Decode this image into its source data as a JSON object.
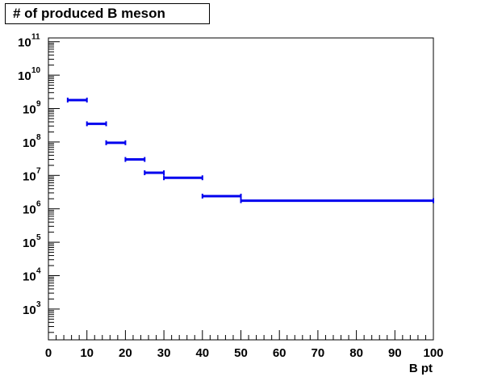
{
  "chart_data": {
    "type": "histogram",
    "title": "# of produced B meson",
    "xlabel": "B pt",
    "ylabel": "",
    "xlim": [
      0,
      100
    ],
    "ylim": [
      120,
      130000000000
    ],
    "y_scale": "log",
    "grid": false,
    "x_major_ticks": [
      0,
      10,
      20,
      30,
      40,
      50,
      60,
      70,
      80,
      90,
      100
    ],
    "x_tick_labels": [
      "0",
      "10",
      "20",
      "30",
      "40",
      "50",
      "60",
      "70",
      "80",
      "90",
      "100"
    ],
    "y_major_ticks": [
      1000,
      10000,
      100000,
      1000000,
      10000000,
      100000000,
      1000000000,
      10000000000,
      100000000000
    ],
    "y_tick_labels": [
      {
        "base": "10",
        "exp": "3"
      },
      {
        "base": "10",
        "exp": "4"
      },
      {
        "base": "10",
        "exp": "5"
      },
      {
        "base": "10",
        "exp": "6"
      },
      {
        "base": "10",
        "exp": "7"
      },
      {
        "base": "10",
        "exp": "8"
      },
      {
        "base": "10",
        "exp": "9"
      },
      {
        "base": "10",
        "exp": "10"
      },
      {
        "base": "10",
        "exp": "11"
      }
    ],
    "series": [
      {
        "color": "#0000ee",
        "bins": [
          {
            "x_low": 5,
            "x_high": 10,
            "value": 1800000000
          },
          {
            "x_low": 10,
            "x_high": 15,
            "value": 350000000
          },
          {
            "x_low": 15,
            "x_high": 20,
            "value": 95000000
          },
          {
            "x_low": 20,
            "x_high": 25,
            "value": 30000000
          },
          {
            "x_low": 25,
            "x_high": 30,
            "value": 12000000
          },
          {
            "x_low": 30,
            "x_high": 40,
            "value": 8500000
          },
          {
            "x_low": 40,
            "x_high": 50,
            "value": 2400000
          },
          {
            "x_low": 50,
            "x_high": 100,
            "value": 1750000
          }
        ]
      }
    ]
  }
}
